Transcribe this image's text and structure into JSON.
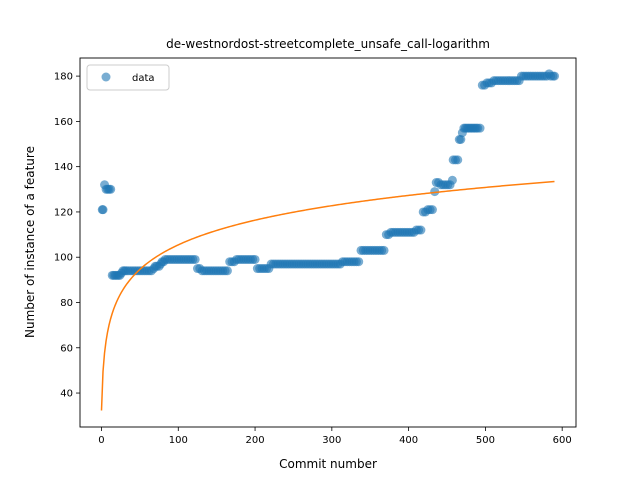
{
  "chart_data": {
    "type": "scatter",
    "title": "de-westnordost-streetcomplete_unsafe_call-logarithm",
    "xlabel": "Commit number",
    "ylabel": "Number of instance of a feature",
    "xlim": [
      -28,
      618
    ],
    "ylim": [
      25,
      188
    ],
    "xticks": [
      0,
      100,
      200,
      300,
      400,
      500,
      600
    ],
    "yticks": [
      40,
      60,
      80,
      100,
      120,
      140,
      160,
      180
    ],
    "grid": false,
    "legend": {
      "position": "top-left",
      "entries": [
        "data"
      ]
    },
    "colors": {
      "data": "#1f77b4",
      "fit": "#ff7f0e"
    },
    "series": [
      {
        "name": "data",
        "kind": "scatter",
        "points": [
          [
            1,
            121
          ],
          [
            2,
            121
          ],
          [
            4,
            132
          ],
          [
            6,
            130
          ],
          [
            8,
            130
          ],
          [
            10,
            130
          ],
          [
            12,
            130
          ],
          [
            14,
            92
          ],
          [
            16,
            92
          ],
          [
            18,
            92
          ],
          [
            20,
            92
          ],
          [
            22,
            92
          ],
          [
            24,
            92
          ],
          [
            26,
            93
          ],
          [
            28,
            94
          ],
          [
            30,
            94
          ],
          [
            32,
            94
          ],
          [
            35,
            94
          ],
          [
            38,
            94
          ],
          [
            41,
            94
          ],
          [
            44,
            94
          ],
          [
            47,
            94
          ],
          [
            50,
            94
          ],
          [
            53,
            94
          ],
          [
            56,
            94
          ],
          [
            59,
            94
          ],
          [
            62,
            94
          ],
          [
            65,
            94
          ],
          [
            68,
            95
          ],
          [
            70,
            96
          ],
          [
            72,
            96
          ],
          [
            75,
            96
          ],
          [
            77,
            97
          ],
          [
            79,
            98
          ],
          [
            81,
            98
          ],
          [
            83,
            99
          ],
          [
            86,
            99
          ],
          [
            89,
            99
          ],
          [
            92,
            99
          ],
          [
            95,
            99
          ],
          [
            98,
            99
          ],
          [
            101,
            99
          ],
          [
            104,
            99
          ],
          [
            107,
            99
          ],
          [
            110,
            99
          ],
          [
            113,
            99
          ],
          [
            116,
            99
          ],
          [
            119,
            99
          ],
          [
            122,
            99
          ],
          [
            125,
            95
          ],
          [
            128,
            95
          ],
          [
            131,
            94
          ],
          [
            134,
            94
          ],
          [
            137,
            94
          ],
          [
            140,
            94
          ],
          [
            143,
            94
          ],
          [
            146,
            94
          ],
          [
            149,
            94
          ],
          [
            152,
            94
          ],
          [
            155,
            94
          ],
          [
            158,
            94
          ],
          [
            161,
            94
          ],
          [
            164,
            94
          ],
          [
            167,
            98
          ],
          [
            170,
            98
          ],
          [
            173,
            98
          ],
          [
            176,
            99
          ],
          [
            179,
            99
          ],
          [
            182,
            99
          ],
          [
            185,
            99
          ],
          [
            188,
            99
          ],
          [
            191,
            99
          ],
          [
            194,
            99
          ],
          [
            197,
            99
          ],
          [
            200,
            99
          ],
          [
            203,
            95
          ],
          [
            206,
            95
          ],
          [
            209,
            95
          ],
          [
            212,
            95
          ],
          [
            215,
            95
          ],
          [
            218,
            95
          ],
          [
            221,
            97
          ],
          [
            224,
            97
          ],
          [
            227,
            97
          ],
          [
            230,
            97
          ],
          [
            233,
            97
          ],
          [
            236,
            97
          ],
          [
            239,
            97
          ],
          [
            242,
            97
          ],
          [
            245,
            97
          ],
          [
            248,
            97
          ],
          [
            251,
            97
          ],
          [
            254,
            97
          ],
          [
            257,
            97
          ],
          [
            260,
            97
          ],
          [
            263,
            97
          ],
          [
            266,
            97
          ],
          [
            269,
            97
          ],
          [
            272,
            97
          ],
          [
            275,
            97
          ],
          [
            278,
            97
          ],
          [
            281,
            97
          ],
          [
            284,
            97
          ],
          [
            287,
            97
          ],
          [
            290,
            97
          ],
          [
            293,
            97
          ],
          [
            296,
            97
          ],
          [
            299,
            97
          ],
          [
            302,
            97
          ],
          [
            305,
            97
          ],
          [
            308,
            97
          ],
          [
            311,
            97
          ],
          [
            314,
            98
          ],
          [
            317,
            98
          ],
          [
            320,
            98
          ],
          [
            323,
            98
          ],
          [
            326,
            98
          ],
          [
            329,
            98
          ],
          [
            332,
            98
          ],
          [
            335,
            98
          ],
          [
            338,
            103
          ],
          [
            341,
            103
          ],
          [
            344,
            103
          ],
          [
            347,
            103
          ],
          [
            350,
            103
          ],
          [
            353,
            103
          ],
          [
            356,
            103
          ],
          [
            359,
            103
          ],
          [
            362,
            103
          ],
          [
            365,
            103
          ],
          [
            368,
            103
          ],
          [
            371,
            110
          ],
          [
            374,
            110
          ],
          [
            377,
            111
          ],
          [
            380,
            111
          ],
          [
            383,
            111
          ],
          [
            386,
            111
          ],
          [
            389,
            111
          ],
          [
            392,
            111
          ],
          [
            395,
            111
          ],
          [
            398,
            111
          ],
          [
            401,
            111
          ],
          [
            404,
            111
          ],
          [
            407,
            111
          ],
          [
            410,
            112
          ],
          [
            413,
            112
          ],
          [
            416,
            112
          ],
          [
            419,
            120
          ],
          [
            422,
            120
          ],
          [
            425,
            121
          ],
          [
            428,
            121
          ],
          [
            431,
            121
          ],
          [
            434,
            129
          ],
          [
            436,
            133
          ],
          [
            439,
            133
          ],
          [
            442,
            132
          ],
          [
            445,
            132
          ],
          [
            448,
            132
          ],
          [
            451,
            132
          ],
          [
            454,
            132
          ],
          [
            457,
            134
          ],
          [
            458,
            143
          ],
          [
            461,
            143
          ],
          [
            464,
            143
          ],
          [
            466,
            152
          ],
          [
            468,
            152
          ],
          [
            470,
            155
          ],
          [
            472,
            157
          ],
          [
            474,
            157
          ],
          [
            476,
            157
          ],
          [
            478,
            157
          ],
          [
            480,
            157
          ],
          [
            482,
            157
          ],
          [
            484,
            157
          ],
          [
            486,
            157
          ],
          [
            488,
            157
          ],
          [
            490,
            157
          ],
          [
            493,
            157
          ],
          [
            496,
            176
          ],
          [
            499,
            176
          ],
          [
            502,
            177
          ],
          [
            505,
            177
          ],
          [
            508,
            177
          ],
          [
            511,
            178
          ],
          [
            514,
            178
          ],
          [
            517,
            178
          ],
          [
            520,
            178
          ],
          [
            523,
            178
          ],
          [
            526,
            178
          ],
          [
            529,
            178
          ],
          [
            532,
            178
          ],
          [
            535,
            178
          ],
          [
            538,
            178
          ],
          [
            541,
            178
          ],
          [
            544,
            178
          ],
          [
            547,
            180
          ],
          [
            550,
            180
          ],
          [
            553,
            180
          ],
          [
            556,
            180
          ],
          [
            559,
            180
          ],
          [
            562,
            180
          ],
          [
            565,
            180
          ],
          [
            568,
            180
          ],
          [
            571,
            180
          ],
          [
            574,
            180
          ],
          [
            577,
            180
          ],
          [
            580,
            180
          ],
          [
            583,
            181
          ],
          [
            585,
            180
          ],
          [
            588,
            180
          ],
          [
            590,
            180
          ]
        ]
      },
      {
        "name": "",
        "kind": "line",
        "model": "logarithm",
        "a": 32.3,
        "b": 15.85,
        "x_range": [
          0,
          590
        ]
      }
    ]
  }
}
